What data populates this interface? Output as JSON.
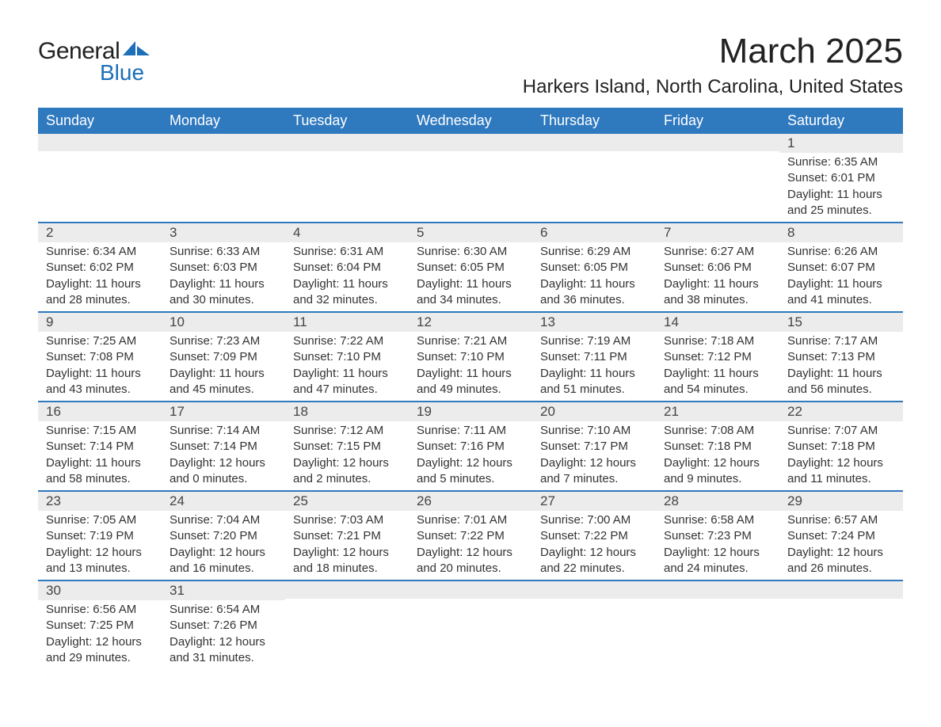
{
  "brand": {
    "word1": "General",
    "word2": "Blue",
    "accent_color": "#1c6fb8"
  },
  "title": "March 2025",
  "location": "Harkers Island, North Carolina, United States",
  "header_bg": "#2f79bf",
  "daynum_bg": "#ececec",
  "row_sep_color": "#2f79bf",
  "text_color": "#333333",
  "columns": [
    "Sunday",
    "Monday",
    "Tuesday",
    "Wednesday",
    "Thursday",
    "Friday",
    "Saturday"
  ],
  "weeks": [
    [
      null,
      null,
      null,
      null,
      null,
      null,
      {
        "n": "1",
        "sunrise": "6:35 AM",
        "sunset": "6:01 PM",
        "daylight": "11 hours and 25 minutes."
      }
    ],
    [
      {
        "n": "2",
        "sunrise": "6:34 AM",
        "sunset": "6:02 PM",
        "daylight": "11 hours and 28 minutes."
      },
      {
        "n": "3",
        "sunrise": "6:33 AM",
        "sunset": "6:03 PM",
        "daylight": "11 hours and 30 minutes."
      },
      {
        "n": "4",
        "sunrise": "6:31 AM",
        "sunset": "6:04 PM",
        "daylight": "11 hours and 32 minutes."
      },
      {
        "n": "5",
        "sunrise": "6:30 AM",
        "sunset": "6:05 PM",
        "daylight": "11 hours and 34 minutes."
      },
      {
        "n": "6",
        "sunrise": "6:29 AM",
        "sunset": "6:05 PM",
        "daylight": "11 hours and 36 minutes."
      },
      {
        "n": "7",
        "sunrise": "6:27 AM",
        "sunset": "6:06 PM",
        "daylight": "11 hours and 38 minutes."
      },
      {
        "n": "8",
        "sunrise": "6:26 AM",
        "sunset": "6:07 PM",
        "daylight": "11 hours and 41 minutes."
      }
    ],
    [
      {
        "n": "9",
        "sunrise": "7:25 AM",
        "sunset": "7:08 PM",
        "daylight": "11 hours and 43 minutes."
      },
      {
        "n": "10",
        "sunrise": "7:23 AM",
        "sunset": "7:09 PM",
        "daylight": "11 hours and 45 minutes."
      },
      {
        "n": "11",
        "sunrise": "7:22 AM",
        "sunset": "7:10 PM",
        "daylight": "11 hours and 47 minutes."
      },
      {
        "n": "12",
        "sunrise": "7:21 AM",
        "sunset": "7:10 PM",
        "daylight": "11 hours and 49 minutes."
      },
      {
        "n": "13",
        "sunrise": "7:19 AM",
        "sunset": "7:11 PM",
        "daylight": "11 hours and 51 minutes."
      },
      {
        "n": "14",
        "sunrise": "7:18 AM",
        "sunset": "7:12 PM",
        "daylight": "11 hours and 54 minutes."
      },
      {
        "n": "15",
        "sunrise": "7:17 AM",
        "sunset": "7:13 PM",
        "daylight": "11 hours and 56 minutes."
      }
    ],
    [
      {
        "n": "16",
        "sunrise": "7:15 AM",
        "sunset": "7:14 PM",
        "daylight": "11 hours and 58 minutes."
      },
      {
        "n": "17",
        "sunrise": "7:14 AM",
        "sunset": "7:14 PM",
        "daylight": "12 hours and 0 minutes."
      },
      {
        "n": "18",
        "sunrise": "7:12 AM",
        "sunset": "7:15 PM",
        "daylight": "12 hours and 2 minutes."
      },
      {
        "n": "19",
        "sunrise": "7:11 AM",
        "sunset": "7:16 PM",
        "daylight": "12 hours and 5 minutes."
      },
      {
        "n": "20",
        "sunrise": "7:10 AM",
        "sunset": "7:17 PM",
        "daylight": "12 hours and 7 minutes."
      },
      {
        "n": "21",
        "sunrise": "7:08 AM",
        "sunset": "7:18 PM",
        "daylight": "12 hours and 9 minutes."
      },
      {
        "n": "22",
        "sunrise": "7:07 AM",
        "sunset": "7:18 PM",
        "daylight": "12 hours and 11 minutes."
      }
    ],
    [
      {
        "n": "23",
        "sunrise": "7:05 AM",
        "sunset": "7:19 PM",
        "daylight": "12 hours and 13 minutes."
      },
      {
        "n": "24",
        "sunrise": "7:04 AM",
        "sunset": "7:20 PM",
        "daylight": "12 hours and 16 minutes."
      },
      {
        "n": "25",
        "sunrise": "7:03 AM",
        "sunset": "7:21 PM",
        "daylight": "12 hours and 18 minutes."
      },
      {
        "n": "26",
        "sunrise": "7:01 AM",
        "sunset": "7:22 PM",
        "daylight": "12 hours and 20 minutes."
      },
      {
        "n": "27",
        "sunrise": "7:00 AM",
        "sunset": "7:22 PM",
        "daylight": "12 hours and 22 minutes."
      },
      {
        "n": "28",
        "sunrise": "6:58 AM",
        "sunset": "7:23 PM",
        "daylight": "12 hours and 24 minutes."
      },
      {
        "n": "29",
        "sunrise": "6:57 AM",
        "sunset": "7:24 PM",
        "daylight": "12 hours and 26 minutes."
      }
    ],
    [
      {
        "n": "30",
        "sunrise": "6:56 AM",
        "sunset": "7:25 PM",
        "daylight": "12 hours and 29 minutes."
      },
      {
        "n": "31",
        "sunrise": "6:54 AM",
        "sunset": "7:26 PM",
        "daylight": "12 hours and 31 minutes."
      },
      null,
      null,
      null,
      null,
      null
    ]
  ],
  "labels": {
    "sunrise": "Sunrise:",
    "sunset": "Sunset:",
    "daylight": "Daylight:"
  }
}
